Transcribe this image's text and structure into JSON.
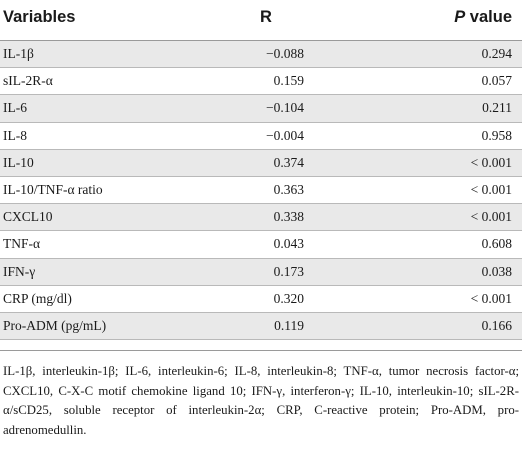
{
  "table": {
    "headers": {
      "variables": "Variables",
      "r": "R",
      "p_italic": "P",
      "p_rest": " value"
    },
    "rows": [
      {
        "variable": "IL-1β",
        "r": "−0.088",
        "p": "0.294"
      },
      {
        "variable": "sIL-2R-α",
        "r": "0.159",
        "p": "0.057"
      },
      {
        "variable": "IL-6",
        "r": "−0.104",
        "p": "0.211"
      },
      {
        "variable": "IL-8",
        "r": "−0.004",
        "p": "0.958"
      },
      {
        "variable": "IL-10",
        "r": "0.374",
        "p": "< 0.001"
      },
      {
        "variable": "IL-10/TNF-α ratio",
        "r": "0.363",
        "p": "< 0.001"
      },
      {
        "variable": "CXCL10",
        "r": "0.338",
        "p": "< 0.001"
      },
      {
        "variable": "TNF-α",
        "r": "0.043",
        "p": "0.608"
      },
      {
        "variable": "IFN-γ",
        "r": "0.173",
        "p": "0.038"
      },
      {
        "variable": "CRP (mg/dl)",
        "r": "0.320",
        "p": "< 0.001"
      },
      {
        "variable": "Pro-ADM (pg/mL)",
        "r": "0.119",
        "p": "0.166"
      }
    ],
    "footnote": "IL-1β, interleukin-1β; IL-6, interleukin-6; IL-8, interleukin-8; TNF-α, tumor necrosis factor-α; CXCL10, C-X-C motif chemokine ligand 10; IFN-γ, interferon-γ; IL-10, interleukin-10; sIL-2R-α/sCD25, soluble receptor of interleukin-2α; CRP, C-reactive protein; Pro-ADM, pro-adrenomedullin."
  }
}
